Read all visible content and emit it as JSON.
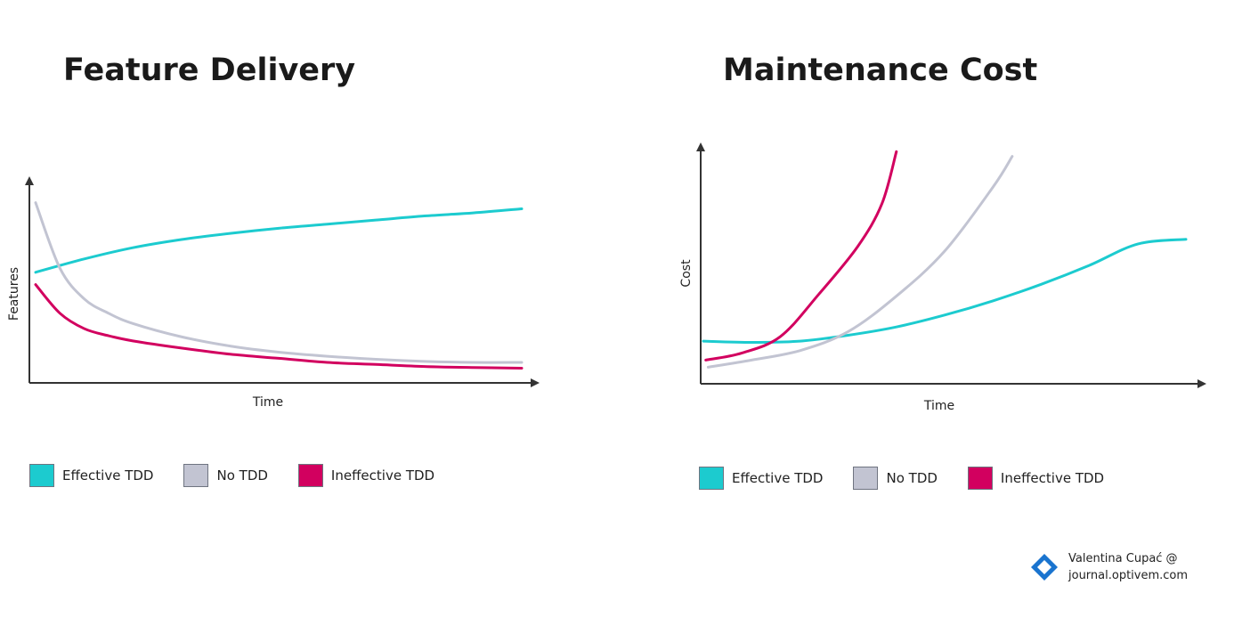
{
  "colors": {
    "effective": "#1ccbcf",
    "no_tdd": "#c2c4d2",
    "ineffective": "#d2005f",
    "axis": "#333333"
  },
  "chart_data": [
    {
      "type": "line",
      "title": "Feature Delivery",
      "xlabel": "Time",
      "ylabel": "Features",
      "xlim": [
        0,
        10
      ],
      "ylim": [
        0,
        10
      ],
      "legend": "bottom",
      "series": [
        {
          "name": "Effective TDD",
          "color_key": "effective",
          "x": [
            0,
            1,
            2,
            3,
            4,
            5,
            6,
            7,
            8,
            9,
            10
          ],
          "y": [
            5.4,
            6.05,
            6.6,
            7.0,
            7.3,
            7.55,
            7.75,
            7.95,
            8.15,
            8.3,
            8.5
          ]
        },
        {
          "name": "No TDD",
          "color_key": "no_tdd",
          "x": [
            0,
            0.5,
            1,
            1.5,
            2,
            3,
            4,
            5,
            6,
            7,
            8,
            9,
            10
          ],
          "y": [
            8.8,
            5.6,
            4.1,
            3.4,
            2.9,
            2.25,
            1.8,
            1.5,
            1.3,
            1.15,
            1.05,
            1.0,
            1.0
          ]
        },
        {
          "name": "Ineffective TDD",
          "color_key": "ineffective",
          "x": [
            0,
            0.5,
            1,
            1.5,
            2,
            3,
            4,
            5,
            6,
            7,
            8,
            9,
            10
          ],
          "y": [
            4.8,
            3.4,
            2.65,
            2.3,
            2.05,
            1.7,
            1.4,
            1.2,
            1.0,
            0.9,
            0.8,
            0.75,
            0.72
          ]
        }
      ]
    },
    {
      "type": "line",
      "title": "Maintenance Cost",
      "xlabel": "Time",
      "ylabel": "Cost",
      "xlim": [
        0,
        10
      ],
      "ylim": [
        0,
        10
      ],
      "legend": "bottom",
      "series": [
        {
          "name": "Effective TDD",
          "color_key": "effective",
          "x": [
            0,
            1,
            2,
            3,
            4,
            5,
            6,
            7,
            8,
            9,
            10
          ],
          "y": [
            1.8,
            1.75,
            1.8,
            2.05,
            2.4,
            2.9,
            3.5,
            4.2,
            5.0,
            5.9,
            6.1
          ]
        },
        {
          "name": "No TDD",
          "color_key": "no_tdd",
          "x": [
            0.1,
            1,
            2,
            3,
            4,
            5,
            6,
            6.4
          ],
          "y": [
            0.7,
            1.0,
            1.4,
            2.2,
            3.7,
            5.6,
            8.3,
            9.6
          ]
        },
        {
          "name": "Ineffective TDD",
          "color_key": "ineffective",
          "x": [
            0.05,
            0.8,
            1.6,
            2.4,
            3.2,
            3.7,
            4.0
          ],
          "y": [
            1.0,
            1.3,
            2.0,
            3.8,
            5.8,
            7.6,
            9.8
          ]
        }
      ]
    }
  ],
  "legend": {
    "items": [
      {
        "label": "Effective TDD",
        "color_key": "effective"
      },
      {
        "label": "No TDD",
        "color_key": "no_tdd"
      },
      {
        "label": "Ineffective TDD",
        "color_key": "ineffective"
      }
    ]
  },
  "credit": {
    "line1": "Valentina Cupać @",
    "line2": "journal.optivem.com",
    "icon": "diamond-logo-icon",
    "icon_color": "#1a74cf"
  }
}
